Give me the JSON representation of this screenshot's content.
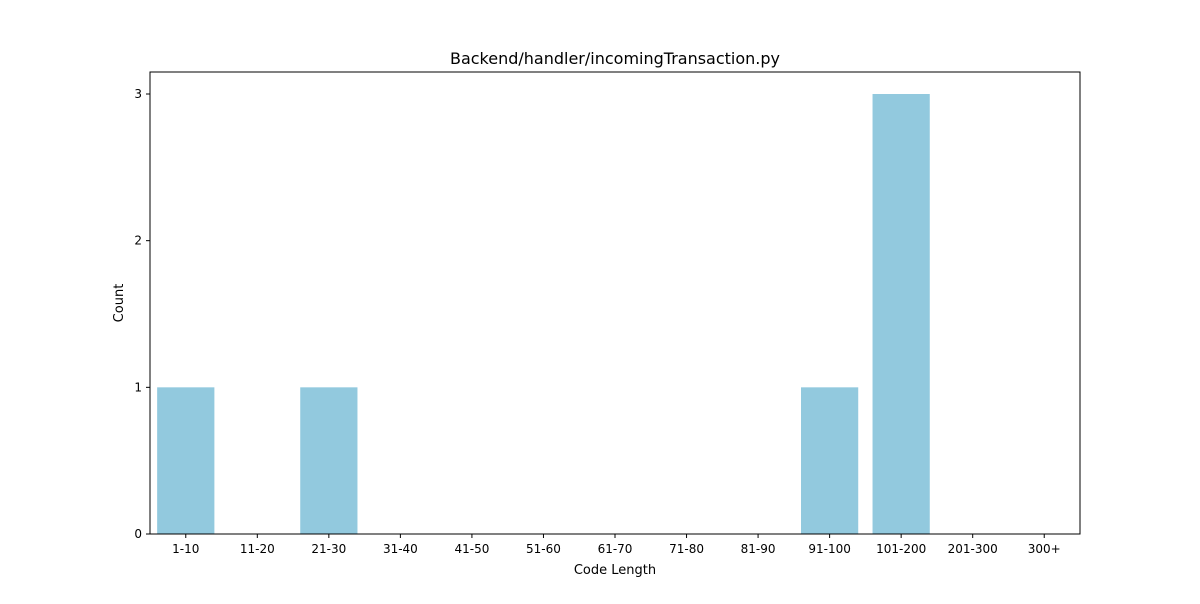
{
  "chart_data": {
    "type": "bar",
    "title": "Backend/handler/incomingTransaction.py",
    "xlabel": "Code Length",
    "ylabel": "Count",
    "categories": [
      "1-10",
      "11-20",
      "21-30",
      "31-40",
      "41-50",
      "51-60",
      "61-70",
      "71-80",
      "81-90",
      "91-100",
      "101-200",
      "201-300",
      "300+"
    ],
    "values": [
      1,
      0,
      1,
      0,
      0,
      0,
      0,
      0,
      0,
      1,
      3,
      0,
      0
    ],
    "ylim": [
      0,
      3.15
    ],
    "yticks": [
      0,
      1,
      2,
      3
    ],
    "grid": false,
    "legend": "none",
    "bar_color": "#92c9de"
  }
}
